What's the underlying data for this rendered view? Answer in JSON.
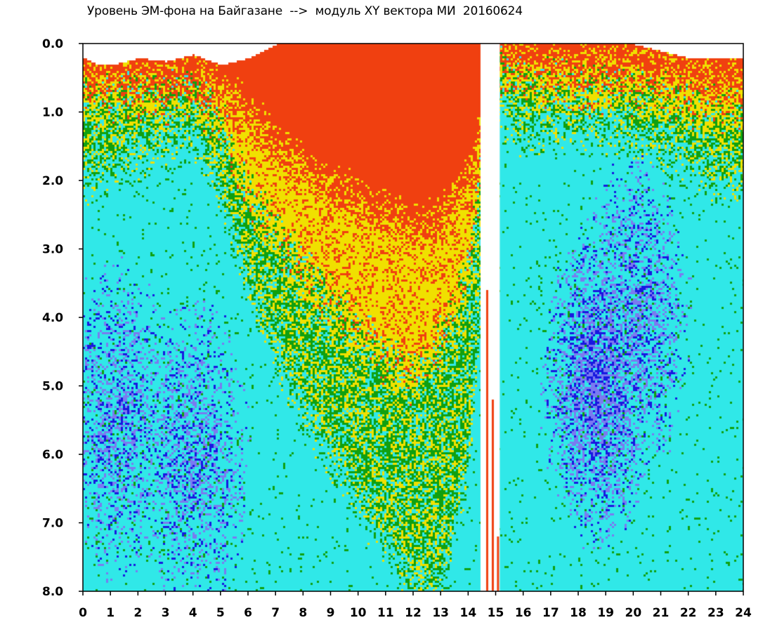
{
  "chart_data": {
    "type": "heatmap",
    "title": "Уровень ЭМ-фона на Байгазане  -->  модуль XY вектора МИ  20160624",
    "xlabel": "",
    "ylabel": "",
    "xlim": [
      0,
      24
    ],
    "ylim": [
      0,
      8
    ],
    "y_inverted": true,
    "x_ticks": [
      "0",
      "1",
      "2",
      "3",
      "4",
      "5",
      "6",
      "7",
      "8",
      "9",
      "10",
      "11",
      "12",
      "13",
      "14",
      "15",
      "16",
      "17",
      "18",
      "19",
      "20",
      "21",
      "22",
      "23",
      "24"
    ],
    "y_ticks": [
      "0.0",
      "1.0",
      "2.0",
      "3.0",
      "4.0",
      "5.0",
      "6.0",
      "7.0",
      "8.0"
    ],
    "grid": false,
    "colorscale": [
      "#1818e0",
      "#7a7af0",
      "#30e8e8",
      "#10a010",
      "#f0e000",
      "#f04010"
    ],
    "band_edge_by_hour": [
      {
        "x": 0,
        "y": 0.2
      },
      {
        "x": 0.5,
        "y": 0.3
      },
      {
        "x": 1,
        "y": 0.3
      },
      {
        "x": 2,
        "y": 0.2
      },
      {
        "x": 3,
        "y": 0.25
      },
      {
        "x": 4,
        "y": 0.15
      },
      {
        "x": 5,
        "y": 0.3
      },
      {
        "x": 6,
        "y": 0.2
      },
      {
        "x": 7,
        "y": 0.0
      },
      {
        "x": 8,
        "y": 0.0
      },
      {
        "x": 9,
        "y": 0.0
      },
      {
        "x": 10,
        "y": 0.0
      },
      {
        "x": 11,
        "y": 0.0
      },
      {
        "x": 12,
        "y": 0.0
      },
      {
        "x": 13,
        "y": 0.0
      },
      {
        "x": 14,
        "y": 0.0
      },
      {
        "x": 15,
        "y": 0.0
      },
      {
        "x": 16,
        "y": 0.0
      },
      {
        "x": 17,
        "y": 0.0
      },
      {
        "x": 18,
        "y": 0.0
      },
      {
        "x": 19,
        "y": 0.0
      },
      {
        "x": 20,
        "y": 0.0
      },
      {
        "x": 21,
        "y": 0.1
      },
      {
        "x": 22,
        "y": 0.2
      },
      {
        "x": 23,
        "y": 0.2
      },
      {
        "x": 24,
        "y": 0.2
      }
    ],
    "level_depth_by_hour": [
      {
        "x": 0,
        "red": 0.5,
        "yellow": 0.8,
        "green": 2.0
      },
      {
        "x": 1,
        "red": 0.5,
        "yellow": 0.8,
        "green": 1.8
      },
      {
        "x": 2,
        "red": 0.5,
        "yellow": 0.8,
        "green": 1.6
      },
      {
        "x": 3,
        "red": 0.5,
        "yellow": 0.8,
        "green": 1.4
      },
      {
        "x": 4,
        "red": 0.5,
        "yellow": 0.7,
        "green": 1.3
      },
      {
        "x": 5,
        "red": 0.7,
        "yellow": 1.2,
        "green": 2.2
      },
      {
        "x": 6,
        "red": 1.0,
        "yellow": 2.2,
        "green": 3.5
      },
      {
        "x": 7,
        "red": 1.5,
        "yellow": 2.8,
        "green": 4.5
      },
      {
        "x": 8,
        "red": 1.8,
        "yellow": 3.3,
        "green": 5.3
      },
      {
        "x": 9,
        "red": 2.1,
        "yellow": 3.8,
        "green": 6.0
      },
      {
        "x": 10,
        "red": 2.3,
        "yellow": 4.2,
        "green": 6.7
      },
      {
        "x": 11,
        "red": 2.5,
        "yellow": 4.6,
        "green": 7.3
      },
      {
        "x": 12,
        "red": 2.7,
        "yellow": 4.9,
        "green": 7.9
      },
      {
        "x": 13,
        "red": 2.6,
        "yellow": 4.3,
        "green": 8.0
      },
      {
        "x": 14,
        "red": 2.0,
        "yellow": 3.2,
        "green": 6.0
      },
      {
        "x": 15,
        "red": 0.1,
        "yellow": 0.3,
        "green": 0.9
      },
      {
        "x": 16,
        "red": 0.2,
        "yellow": 0.6,
        "green": 1.3
      },
      {
        "x": 17,
        "red": 0.3,
        "yellow": 0.6,
        "green": 1.2
      },
      {
        "x": 18,
        "red": 0.3,
        "yellow": 0.7,
        "green": 1.2
      },
      {
        "x": 19,
        "red": 0.3,
        "yellow": 0.7,
        "green": 1.2
      },
      {
        "x": 20,
        "red": 0.3,
        "yellow": 0.7,
        "green": 1.3
      },
      {
        "x": 21,
        "red": 0.4,
        "yellow": 0.8,
        "green": 1.5
      },
      {
        "x": 22,
        "red": 0.4,
        "yellow": 0.9,
        "green": 1.7
      },
      {
        "x": 23,
        "red": 0.5,
        "yellow": 1.0,
        "green": 2.0
      },
      {
        "x": 24,
        "red": 0.5,
        "yellow": 1.0,
        "green": 2.0
      }
    ],
    "blue_center": [
      {
        "x": 1.2,
        "y": 5.5,
        "level": 0.6
      },
      {
        "x": 4.0,
        "y": 6.0,
        "level": 0.6
      },
      {
        "x": 18.7,
        "y": 5.0,
        "level": 1.0
      },
      {
        "x": 20.0,
        "y": 4.0,
        "level": 0.7
      }
    ],
    "gap": {
      "x_start": 14.45,
      "x_end": 15.15,
      "y_start": 0.0,
      "y_end": 8.0
    }
  }
}
